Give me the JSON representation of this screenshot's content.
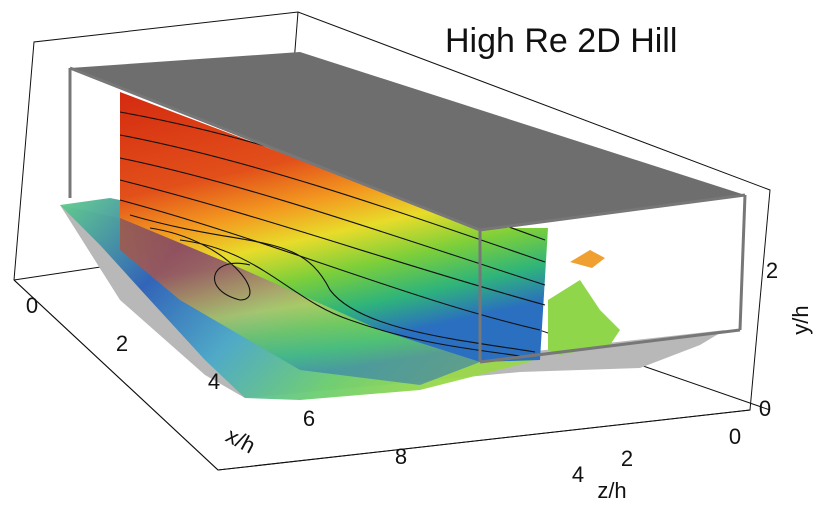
{
  "title": "High Re 2D Hill",
  "axes": {
    "x": {
      "label": "x/h",
      "ticks": [
        "0",
        "2",
        "4",
        "6",
        "8"
      ]
    },
    "y": {
      "label": "y/h",
      "ticks": [
        "0",
        "2"
      ]
    },
    "z": {
      "label": "z/h",
      "ticks": [
        "0",
        "2",
        "4"
      ]
    }
  }
}
